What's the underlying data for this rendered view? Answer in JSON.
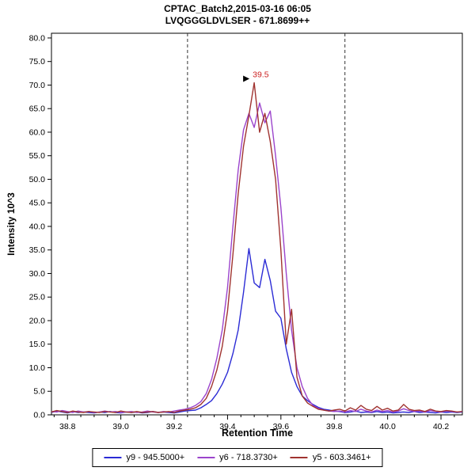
{
  "chart_data": {
    "type": "line",
    "title": "CPTAC_Batch2,2015-03-16 06:05",
    "subtitle": "LVQGGGLDVLSER - 671.8699++",
    "xlabel": "Retention Time",
    "ylabel": "Intensity 10^3",
    "xlim": [
      38.74,
      40.28
    ],
    "ylim": [
      0,
      81
    ],
    "x_ticks": [
      38.8,
      39.0,
      39.2,
      39.4,
      39.6,
      39.8,
      40.0,
      40.2
    ],
    "x_minor_tick_step": 0.05,
    "y_ticks": [
      0,
      5,
      10,
      15,
      20,
      25,
      30,
      35,
      40,
      45,
      50,
      55,
      60,
      65,
      70,
      75,
      80
    ],
    "grid": false,
    "legend_position": "bottom",
    "peak_boundaries": [
      39.25,
      39.84
    ],
    "peak_annotation": {
      "text": "39.5",
      "x": 39.5,
      "y": 70.5,
      "color": "#cc2222",
      "pointer": "right-triangle"
    },
    "x": [
      38.74,
      38.76,
      38.78,
      38.8,
      38.82,
      38.84,
      38.86,
      38.88,
      38.9,
      38.92,
      38.94,
      38.96,
      38.98,
      39.0,
      39.02,
      39.04,
      39.06,
      39.08,
      39.1,
      39.12,
      39.14,
      39.16,
      39.18,
      39.2,
      39.22,
      39.24,
      39.26,
      39.28,
      39.3,
      39.32,
      39.34,
      39.36,
      39.38,
      39.4,
      39.42,
      39.44,
      39.46,
      39.48,
      39.5,
      39.52,
      39.54,
      39.56,
      39.58,
      39.6,
      39.62,
      39.64,
      39.66,
      39.68,
      39.7,
      39.72,
      39.74,
      39.76,
      39.78,
      39.8,
      39.82,
      39.84,
      39.86,
      39.88,
      39.9,
      39.92,
      39.94,
      39.96,
      39.98,
      40.0,
      40.02,
      40.04,
      40.06,
      40.08,
      40.1,
      40.12,
      40.14,
      40.16,
      40.18,
      40.2,
      40.22,
      40.24,
      40.26,
      40.28
    ],
    "series": [
      {
        "name": "y9 - 945.5000+",
        "color": "#2b2bd5",
        "values": [
          0.5,
          0.8,
          0.6,
          0.4,
          0.7,
          0.5,
          0.6,
          0.5,
          0.4,
          0.6,
          0.5,
          0.7,
          0.5,
          0.4,
          0.6,
          0.5,
          0.6,
          0.4,
          0.5,
          0.7,
          0.5,
          0.6,
          0.5,
          0.4,
          0.6,
          0.8,
          0.9,
          1.0,
          1.5,
          2.2,
          3.0,
          4.5,
          6.5,
          9.0,
          13.0,
          18.0,
          26.0,
          35.3,
          28.0,
          27.0,
          33.0,
          28.5,
          22.0,
          20.5,
          14.0,
          9.0,
          6.0,
          4.0,
          3.0,
          2.2,
          1.6,
          1.2,
          1.0,
          0.8,
          0.7,
          0.5,
          0.6,
          0.8,
          0.5,
          0.6,
          0.5,
          0.7,
          0.5,
          0.6,
          0.4,
          0.5,
          0.6,
          0.5,
          0.7,
          0.5,
          0.6,
          0.5,
          0.4,
          0.6,
          0.5,
          0.6,
          0.5,
          0.6
        ]
      },
      {
        "name": "y6 - 718.3730+",
        "color": "#9b44cc",
        "values": [
          0.7,
          0.6,
          0.9,
          0.7,
          0.5,
          0.8,
          0.6,
          0.7,
          0.5,
          0.6,
          0.8,
          0.6,
          0.7,
          0.5,
          0.6,
          0.7,
          0.5,
          0.6,
          0.8,
          0.6,
          0.5,
          0.7,
          0.6,
          0.8,
          1.0,
          1.2,
          1.5,
          2.0,
          2.8,
          4.5,
          7.5,
          12.0,
          18.0,
          27.0,
          40.0,
          52.0,
          60.5,
          64.0,
          61.0,
          66.2,
          62.0,
          64.5,
          55.0,
          44.0,
          30.0,
          18.0,
          10.0,
          6.0,
          3.5,
          2.0,
          1.4,
          1.0,
          0.8,
          0.7,
          0.8,
          0.6,
          0.9,
          0.7,
          1.2,
          0.8,
          0.6,
          1.0,
          0.7,
          0.9,
          0.6,
          0.8,
          1.3,
          0.9,
          0.7,
          0.8,
          0.6,
          0.9,
          0.7,
          0.6,
          0.8,
          0.7,
          0.6,
          0.7
        ]
      },
      {
        "name": "y5 - 603.3461+",
        "color": "#a03330",
        "values": [
          0.6,
          0.9,
          0.7,
          0.5,
          0.8,
          0.6,
          0.5,
          0.7,
          0.6,
          0.5,
          0.7,
          0.6,
          0.5,
          0.8,
          0.6,
          0.5,
          0.7,
          0.5,
          0.6,
          0.7,
          0.5,
          0.6,
          0.7,
          0.5,
          0.8,
          1.0,
          1.2,
          1.5,
          2.2,
          3.5,
          6.0,
          9.5,
          14.5,
          22.0,
          34.0,
          47.0,
          57.0,
          63.5,
          70.5,
          60.0,
          64.0,
          58.0,
          50.0,
          35.0,
          15.0,
          22.4,
          8.0,
          4.0,
          2.5,
          1.8,
          1.2,
          1.0,
          0.8,
          1.0,
          1.2,
          0.8,
          1.5,
          1.0,
          2.0,
          1.2,
          0.9,
          1.8,
          1.0,
          1.4,
          0.8,
          1.0,
          2.2,
          1.2,
          0.9,
          1.0,
          0.7,
          1.2,
          0.8,
          0.7,
          0.9,
          0.8,
          0.6,
          0.7
        ]
      }
    ]
  }
}
